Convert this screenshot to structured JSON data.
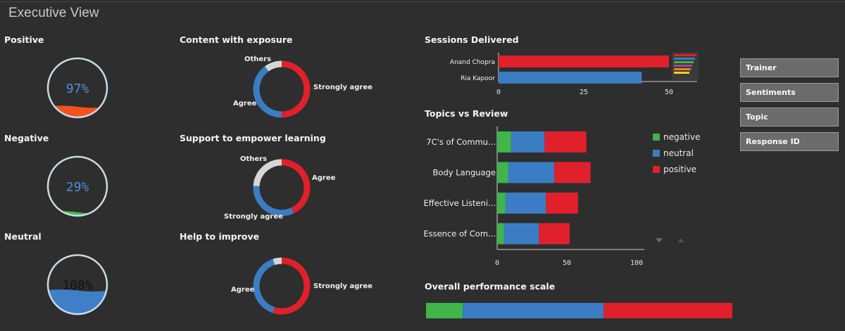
{
  "header": {
    "title": "Executive View"
  },
  "gauges": [
    {
      "label": "Positive",
      "value_text": "97%",
      "fill": 0.18,
      "fill_color": "#f4511e",
      "text_color": "#4a90d9"
    },
    {
      "label": "Negative",
      "value_text": "29%",
      "fill": 0.06,
      "fill_color": "#3fbf4a",
      "text_color": "#4a90d9"
    },
    {
      "label": "Neutral",
      "value_text": "108%",
      "fill": 0.4,
      "fill_color": "#3f7fc8",
      "text_color": "#111111"
    }
  ],
  "donuts": [
    {
      "label": "Content with exposure",
      "segments": [
        {
          "name": "Strongly agree",
          "value": 50,
          "color": "#e0202a"
        },
        {
          "name": "Agree",
          "value": 40,
          "color": "#3a7dc4"
        },
        {
          "name": "Others",
          "value": 10,
          "color": "#d6d6d6"
        }
      ],
      "labels": [
        "Strongly agree",
        "Agree",
        "Others"
      ]
    },
    {
      "label": "Support to empower learning",
      "segments": [
        {
          "name": "Agree",
          "value": 43,
          "color": "#e0202a"
        },
        {
          "name": "Strongly agree",
          "value": 33,
          "color": "#3a7dc4"
        },
        {
          "name": "Others",
          "value": 24,
          "color": "#d6d6d6"
        }
      ],
      "labels": [
        "Agree",
        "Strongly agree",
        "Others"
      ]
    },
    {
      "label": "Help to improve",
      "segments": [
        {
          "name": "Strongly agree",
          "value": 55,
          "color": "#e0202a"
        },
        {
          "name": "Agree",
          "value": 40,
          "color": "#3a7dc4"
        },
        {
          "name": "Others",
          "value": 5,
          "color": "#d6d6d6"
        }
      ],
      "labels": [
        "Agree",
        "Strongly agree"
      ]
    }
  ],
  "sessions": {
    "title": "Sessions Delivered",
    "chart_data": {
      "type": "bar",
      "categories": [
        "Anand Chopra",
        "Ria Kapoor"
      ],
      "values": [
        50,
        42
      ],
      "colors": [
        "#e0202a",
        "#3a7dc4"
      ],
      "xlim": [
        0,
        50
      ],
      "xticks": [
        "0",
        "25",
        "50"
      ]
    }
  },
  "topics": {
    "title": "Topics vs Review",
    "chart_data": {
      "type": "bar",
      "categories": [
        "7C's of Commu...",
        "Body Language",
        "Effective Listeni...",
        "Essence of Com..."
      ],
      "series": [
        {
          "name": "negative",
          "color": "#3fb54a",
          "values": [
            10,
            8,
            6,
            5
          ]
        },
        {
          "name": "neutral",
          "color": "#3a7dc4",
          "values": [
            24,
            33,
            29,
            25
          ]
        },
        {
          "name": "positive",
          "color": "#e0202a",
          "values": [
            30,
            26,
            23,
            22
          ]
        }
      ],
      "xlim": [
        0,
        100
      ],
      "xticks": [
        "0",
        "50",
        "100"
      ]
    }
  },
  "overall": {
    "title": "Overall performance scale",
    "chart_data": {
      "type": "bar",
      "series": [
        {
          "name": "negative",
          "color": "#3fb54a",
          "value": 12
        },
        {
          "name": "neutral",
          "color": "#3a7dc4",
          "value": 46
        },
        {
          "name": "positive",
          "color": "#e0202a",
          "value": 42
        }
      ]
    }
  },
  "filters": [
    "Trainer",
    "Sentiments",
    "Topic",
    "Response ID"
  ]
}
